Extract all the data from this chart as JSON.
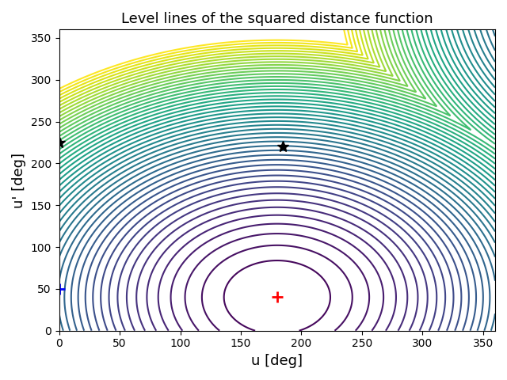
{
  "title": "Level lines of the squared distance function",
  "xlabel": "u [deg]",
  "ylabel": "u' [deg]",
  "xlim": [
    0,
    360
  ],
  "ylim": [
    0,
    360
  ],
  "xticks": [
    0,
    50,
    100,
    150,
    200,
    250,
    300,
    350
  ],
  "yticks": [
    0,
    50,
    100,
    150,
    200,
    250,
    300,
    350
  ],
  "red_cross": [
    180,
    40
  ],
  "blue_cross": [
    0,
    50
  ],
  "black_star1": [
    0,
    225
  ],
  "black_star2": [
    185,
    220
  ],
  "n_contours": 50,
  "cmap": "viridis",
  "figsize": [
    6.4,
    4.8
  ],
  "dpi": 100,
  "u0": 180,
  "v0": 40,
  "period": 360
}
